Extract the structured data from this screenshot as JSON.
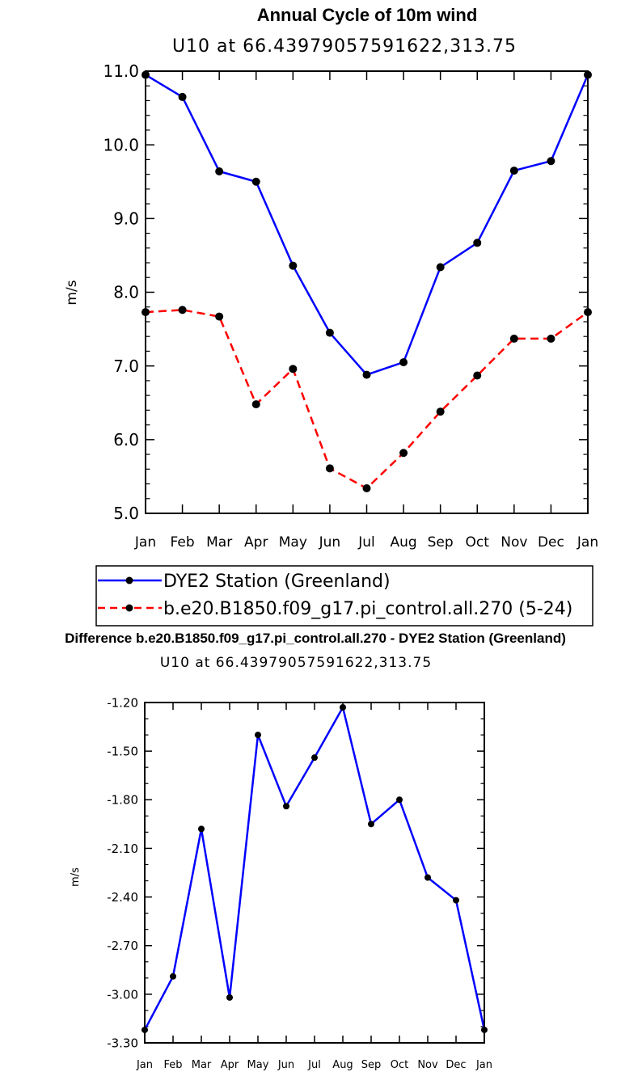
{
  "chart_data": [
    {
      "type": "line",
      "title": "Annual Cycle of 10m wind",
      "subtitle": "U10 at 66.43979057591622,313.75",
      "xlabel": "",
      "ylabel": "m/s",
      "categories": [
        "Jan",
        "Feb",
        "Mar",
        "Apr",
        "May",
        "Jun",
        "Jul",
        "Aug",
        "Sep",
        "Oct",
        "Nov",
        "Dec",
        "Jan"
      ],
      "ylim": [
        5.0,
        11.0
      ],
      "ytick_labels": [
        "5.0",
        "6.0",
        "7.0",
        "8.0",
        "9.0",
        "10.0",
        "11.0"
      ],
      "grid": false,
      "legend_position": "below",
      "series": [
        {
          "name": "DYE2 Station (Greenland)",
          "color": "#0000ff",
          "style": "solid",
          "values": [
            10.95,
            10.65,
            9.64,
            9.5,
            8.36,
            7.45,
            6.88,
            7.05,
            8.34,
            8.67,
            9.65,
            9.78,
            10.95
          ]
        },
        {
          "name": "b.e20.B1850.f09_g17.pi_control.all.270 (5-24)",
          "color": "#ff0000",
          "style": "dashed",
          "values": [
            7.73,
            7.76,
            7.67,
            6.48,
            6.96,
            5.61,
            5.34,
            5.82,
            6.38,
            6.87,
            7.37,
            7.37,
            7.73
          ]
        }
      ]
    },
    {
      "type": "line",
      "title": "Difference b.e20.B1850.f09_g17.pi_control.all.270 - DYE2 Station (Greenland)",
      "subtitle": "U10 at 66.43979057591622,313.75",
      "xlabel": "",
      "ylabel": "m/s",
      "categories": [
        "Jan",
        "Feb",
        "Mar",
        "Apr",
        "May",
        "Jun",
        "Jul",
        "Aug",
        "Sep",
        "Oct",
        "Nov",
        "Dec",
        "Jan"
      ],
      "ylim": [
        -3.3,
        -1.2
      ],
      "ytick_labels": [
        "-3.30",
        "-3.00",
        "-2.70",
        "-2.40",
        "-2.10",
        "-1.80",
        "-1.50",
        "-1.20"
      ],
      "grid": false,
      "series": [
        {
          "name": "Difference",
          "color": "#0000ff",
          "style": "solid",
          "values": [
            -3.22,
            -2.89,
            -1.98,
            -3.02,
            -1.4,
            -1.84,
            -1.54,
            -1.23,
            -1.95,
            -1.8,
            -2.28,
            -2.42,
            -3.22
          ]
        }
      ]
    }
  ]
}
